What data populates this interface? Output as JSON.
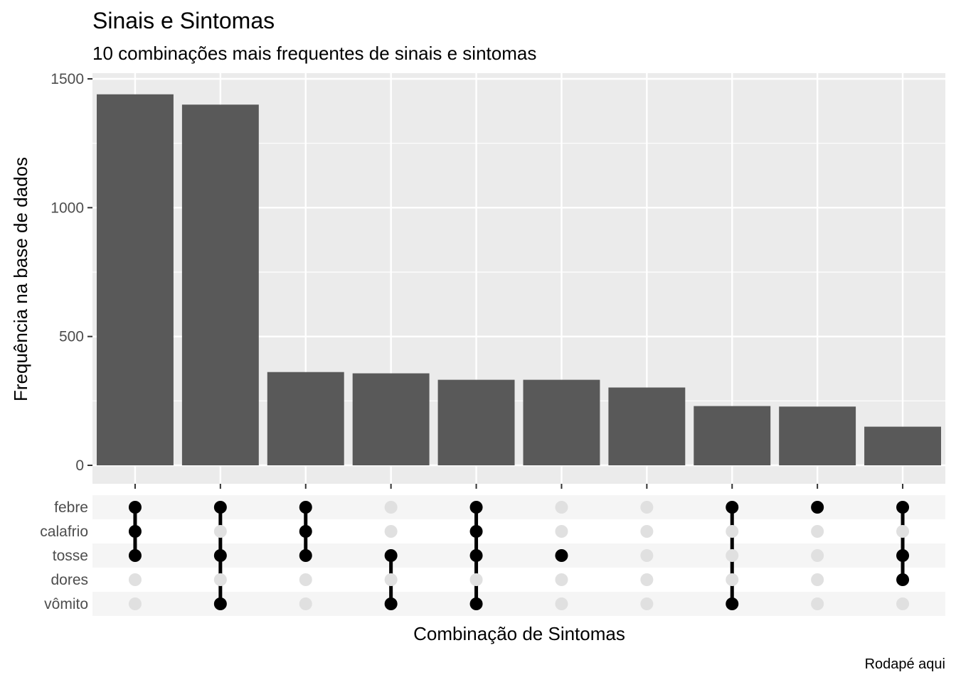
{
  "chart_data": {
    "type": "bar",
    "title": "Sinais e Sintomas",
    "subtitle": "10 combinações mais frequentes de sinais e sintomas",
    "xlabel": "Combinação de Sintomas",
    "ylabel": "Frequência na base de dados",
    "caption": "Rodapé aqui",
    "ylim": [
      -75,
      1530
    ],
    "yticks": [
      0,
      500,
      1000,
      1500
    ],
    "grid": true,
    "bar_color": "#595959",
    "panel_color": "#ebebeb",
    "symptoms": [
      "febre",
      "calafrio",
      "tosse",
      "dores",
      "vômito"
    ],
    "combinations": [
      {
        "value": 1440,
        "members": [
          "febre",
          "calafrio",
          "tosse"
        ]
      },
      {
        "value": 1400,
        "members": [
          "febre",
          "tosse",
          "vômito"
        ]
      },
      {
        "value": 362,
        "members": [
          "febre",
          "calafrio",
          "tosse"
        ]
      },
      {
        "value": 357,
        "members": [
          "tosse",
          "vômito"
        ]
      },
      {
        "value": 332,
        "members": [
          "febre",
          "calafrio",
          "tosse",
          "vômito"
        ]
      },
      {
        "value": 332,
        "members": [
          "tosse"
        ]
      },
      {
        "value": 302,
        "members": []
      },
      {
        "value": 230,
        "members": [
          "febre",
          "vômito"
        ]
      },
      {
        "value": 228,
        "members": [
          "febre"
        ]
      },
      {
        "value": 150,
        "members": [
          "febre",
          "tosse",
          "dores"
        ]
      }
    ]
  }
}
